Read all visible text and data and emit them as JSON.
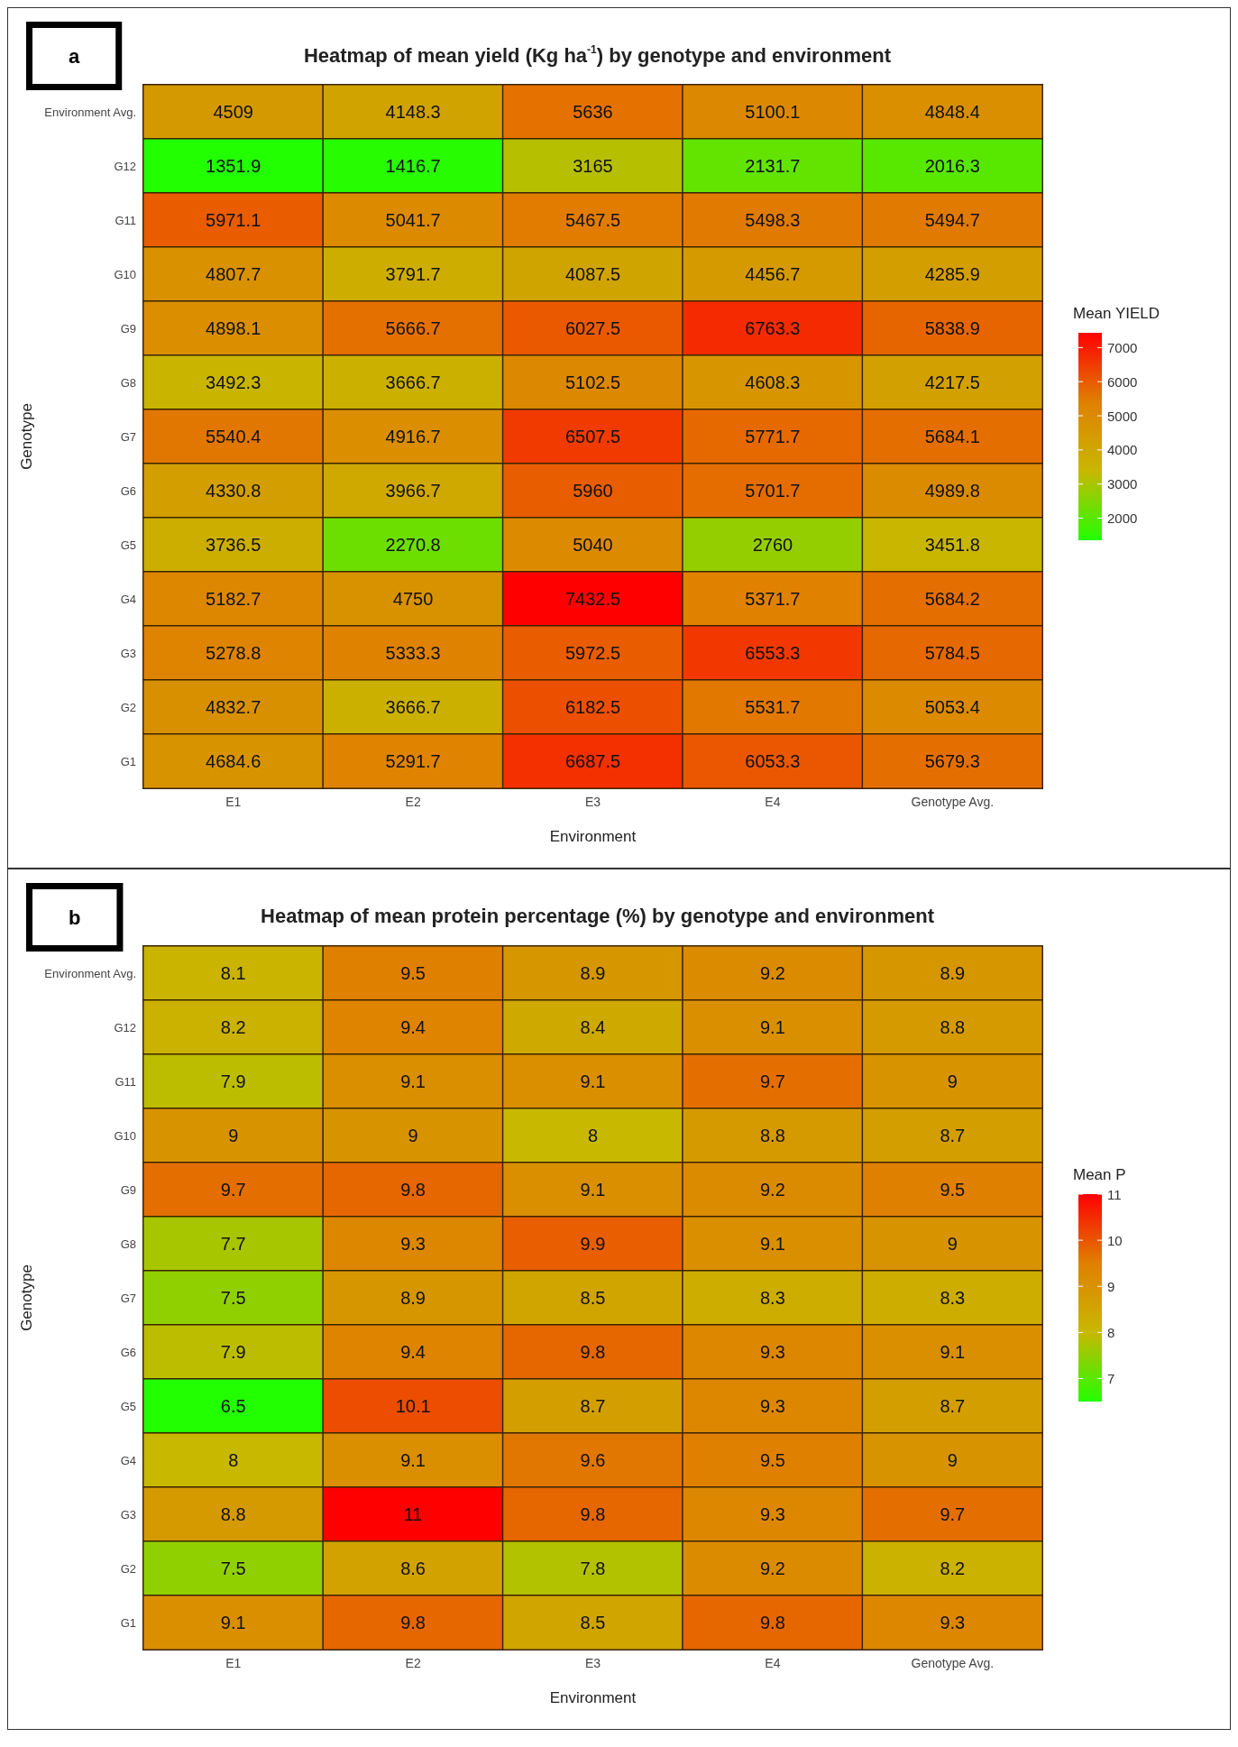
{
  "chart_data": [
    {
      "type": "heatmap",
      "title": "Heatmap of mean yield (Kg ha$^{-1}$) by genotype and environment",
      "xlabel": "Environment",
      "ylabel": "Genotype",
      "clabel": "Mean YIELD",
      "annotations": [
        "a"
      ],
      "data_labels": true,
      "categories": [
        "E1",
        "E2",
        "E3",
        "E4",
        "Genotype Avg."
      ],
      "y_categories": [
        "Environment Avg.",
        "G12",
        "G11",
        "G10",
        "G9",
        "G8",
        "G7",
        "G6",
        "G5",
        "G4",
        "G3",
        "G2",
        "G1"
      ],
      "cells": [
        [
          4509,
          4148.3,
          5636,
          5100.1,
          4848.4
        ],
        [
          1351.9,
          1416.7,
          3165,
          2131.7,
          2016.3
        ],
        [
          5971.1,
          5041.7,
          5467.5,
          5498.3,
          5494.7
        ],
        [
          4807.7,
          3791.7,
          4087.5,
          4456.7,
          4285.9
        ],
        [
          4898.1,
          5666.7,
          6027.5,
          6763.3,
          5838.9
        ],
        [
          3492.3,
          3666.7,
          5102.5,
          4608.3,
          4217.5
        ],
        [
          5540.4,
          4916.7,
          6507.5,
          5771.7,
          5684.1
        ],
        [
          4330.8,
          3966.7,
          5960,
          5701.7,
          4989.8
        ],
        [
          3736.5,
          2270.8,
          5040,
          2760,
          3451.8
        ],
        [
          5182.7,
          4750,
          7432.5,
          5371.7,
          5684.2
        ],
        [
          5278.8,
          5333.3,
          5972.5,
          6553.3,
          5784.5
        ],
        [
          4832.7,
          3666.7,
          6182.5,
          5531.7,
          5053.4
        ],
        [
          4684.6,
          5291.7,
          6687.5,
          6053.3,
          5679.3
        ]
      ],
      "clim": [
        1351.9,
        7432.5
      ],
      "cticks": [
        2000,
        3000,
        4000,
        5000,
        6000,
        7000
      ]
    },
    {
      "type": "heatmap",
      "title": "Heatmap of mean protein percentage (%) by genotype and environment",
      "xlabel": "Environment",
      "ylabel": "Genotype",
      "clabel": "Mean P",
      "annotations": [
        "b"
      ],
      "data_labels": true,
      "categories": [
        "E1",
        "E2",
        "E3",
        "E4",
        "Genotype Avg."
      ],
      "y_categories": [
        "Environment Avg.",
        "G12",
        "G11",
        "G10",
        "G9",
        "G8",
        "G7",
        "G6",
        "G5",
        "G4",
        "G3",
        "G2",
        "G1"
      ],
      "cells": [
        [
          8.1,
          9.5,
          8.9,
          9.2,
          8.9
        ],
        [
          8.2,
          9.4,
          8.4,
          9.1,
          8.8
        ],
        [
          7.9,
          9.1,
          9.1,
          9.7,
          9
        ],
        [
          9,
          9,
          8,
          8.8,
          8.7
        ],
        [
          9.7,
          9.8,
          9.1,
          9.2,
          9.5
        ],
        [
          7.7,
          9.3,
          9.9,
          9.1,
          9
        ],
        [
          7.5,
          8.9,
          8.5,
          8.3,
          8.3
        ],
        [
          7.9,
          9.4,
          9.8,
          9.3,
          9.1
        ],
        [
          6.5,
          10.1,
          8.7,
          9.3,
          8.7
        ],
        [
          8,
          9.1,
          9.6,
          9.5,
          9
        ],
        [
          8.8,
          11,
          9.8,
          9.3,
          9.7
        ],
        [
          7.5,
          8.6,
          7.8,
          9.2,
          8.2
        ],
        [
          9.1,
          9.8,
          8.5,
          9.8,
          9.3
        ]
      ],
      "clim": [
        6.5,
        11
      ],
      "cticks": [
        7,
        8,
        9,
        10,
        11
      ]
    }
  ]
}
